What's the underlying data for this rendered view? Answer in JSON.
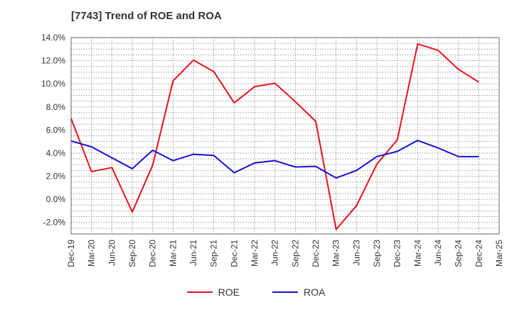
{
  "chart_data": {
    "type": "line",
    "title": "[7743]  Trend of ROE and ROA",
    "x": [
      "Dec-19",
      "Mar-20",
      "Jun-20",
      "Sep-20",
      "Dec-20",
      "Mar-21",
      "Jun-21",
      "Sep-21",
      "Dec-21",
      "Mar-22",
      "Jun-22",
      "Sep-22",
      "Dec-22",
      "Mar-23",
      "Jun-23",
      "Sep-23",
      "Dec-23",
      "Mar-24",
      "Jun-24",
      "Sep-24",
      "Dec-24",
      "Mar-25"
    ],
    "ylim": [
      -3.0,
      14.0
    ],
    "yticks": [
      -2.0,
      0.0,
      2.0,
      4.0,
      6.0,
      8.0,
      10.0,
      12.0,
      14.0
    ],
    "ytick_labels": [
      "-2.0%",
      "0.0%",
      "2.0%",
      "4.0%",
      "6.0%",
      "8.0%",
      "10.0%",
      "12.0%",
      "14.0%"
    ],
    "grid": true,
    "legend_position": "bottom-center",
    "series": [
      {
        "name": "ROE",
        "color": "#e8141e",
        "values": [
          7.0,
          2.4,
          2.75,
          -1.1,
          2.95,
          10.25,
          12.05,
          11.05,
          8.35,
          9.75,
          10.05,
          8.45,
          6.75,
          -2.6,
          -0.55,
          3.05,
          5.15,
          13.45,
          12.9,
          11.25,
          10.15,
          null
        ]
      },
      {
        "name": "ROA",
        "color": "#1414d2",
        "values": [
          5.05,
          4.55,
          3.6,
          2.65,
          4.25,
          3.35,
          3.9,
          3.8,
          2.3,
          3.15,
          3.35,
          2.8,
          2.85,
          1.85,
          2.5,
          3.7,
          4.15,
          5.1,
          4.45,
          3.7,
          3.7,
          null
        ]
      }
    ]
  }
}
